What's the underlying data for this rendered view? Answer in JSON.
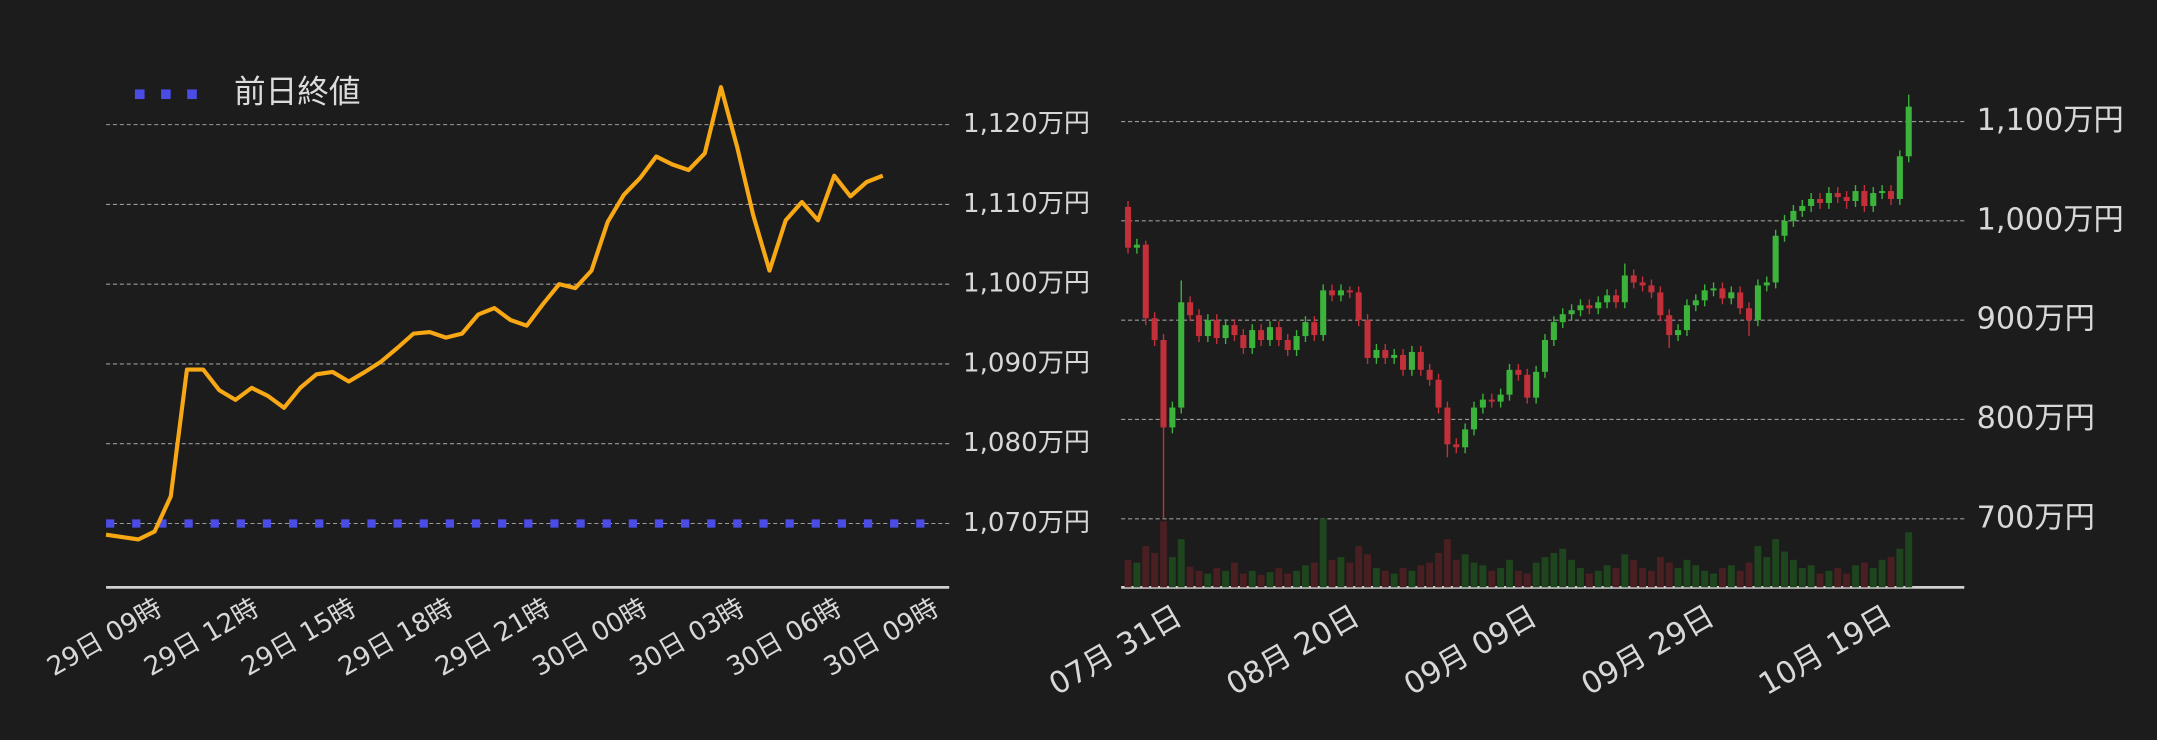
{
  "chart_data": [
    {
      "type": "line",
      "categories": [
        null,
        null,
        null,
        "29日 09時",
        null,
        null,
        null,
        null,
        null,
        "29日 12時",
        null,
        null,
        null,
        null,
        null,
        "29日 15時",
        null,
        null,
        null,
        null,
        null,
        "29日 18時",
        null,
        null,
        null,
        null,
        null,
        "29日 21時",
        null,
        null,
        null,
        null,
        null,
        "30日 00時",
        null,
        null,
        null,
        null,
        null,
        "30日 03時",
        null,
        null,
        null,
        null,
        null,
        "30日 06時",
        null,
        null,
        null,
        null,
        null,
        "30日 09時"
      ],
      "series": [
        {
          "color": "#f7a814",
          "values": [
            1068.6,
            1068.3,
            1068,
            1069,
            1073.4,
            1089.3,
            1089.3,
            1086.7,
            1085.5,
            1087,
            1086,
            1084.5,
            1087,
            1088.7,
            1089,
            1087.8,
            1089,
            1090.3,
            1092,
            1093.8,
            1094,
            1093.3,
            1093.8,
            1096.2,
            1097,
            1095.5,
            1094.8,
            1097.5,
            1100,
            1099.5,
            1101.7,
            1107.8,
            1111.2,
            1113.3,
            1116,
            1115,
            1114.3,
            1116.4,
            1124.7,
            1117.2,
            1108.6,
            1101.7,
            1108,
            1110.3,
            1108,
            1113.6,
            1111,
            1112.8,
            1113.6,
            null,
            null,
            null
          ]
        }
      ],
      "reference_lines": [
        {
          "name": "前日終値",
          "value": 1070,
          "color": "#4b4be6",
          "style": "dotted"
        }
      ],
      "ylim": [
        1062,
        1128
      ],
      "yticks": [
        {
          "value": 1070,
          "label": "1,070万円"
        },
        {
          "value": 1080,
          "label": "1,080万円"
        },
        {
          "value": 1090,
          "label": "1,090万円"
        },
        {
          "value": 1100,
          "label": "1,100万円"
        },
        {
          "value": 1110,
          "label": "1,110万円"
        },
        {
          "value": 1120,
          "label": "1,120万円"
        }
      ],
      "grid": true
    },
    {
      "type": "candlestick",
      "categories": [
        null,
        null,
        null,
        null,
        "07月 31日",
        null,
        null,
        null,
        null,
        null,
        null,
        null,
        null,
        null,
        null,
        null,
        null,
        null,
        null,
        null,
        null,
        null,
        null,
        null,
        "08月 20日",
        null,
        null,
        null,
        null,
        null,
        null,
        null,
        null,
        null,
        null,
        null,
        null,
        null,
        null,
        null,
        null,
        null,
        null,
        null,
        "09月 09日",
        null,
        null,
        null,
        null,
        null,
        null,
        null,
        null,
        null,
        null,
        null,
        null,
        null,
        null,
        null,
        null,
        null,
        null,
        null,
        "09月 29日",
        null,
        null,
        null,
        null,
        null,
        null,
        null,
        null,
        null,
        null,
        null,
        null,
        null,
        null,
        null,
        null,
        null,
        null,
        null,
        "10月 19日",
        null,
        null,
        null,
        null
      ],
      "open": [
        1014,
        973,
        976,
        902,
        880,
        792,
        812,
        918,
        905,
        884,
        900,
        882,
        895,
        885,
        872,
        890,
        880,
        893,
        880,
        870,
        884,
        898,
        885,
        930,
        925,
        930,
        928,
        900,
        862,
        870,
        862,
        865,
        850,
        868,
        850,
        840,
        812,
        775,
        772,
        790,
        812,
        820,
        818,
        825,
        850,
        845,
        822,
        848,
        880,
        898,
        906,
        910,
        915,
        912,
        918,
        925,
        918,
        945,
        938,
        935,
        928,
        905,
        885,
        890,
        915,
        920,
        930,
        932,
        922,
        928,
        912,
        900,
        935,
        938,
        985,
        1000,
        1010,
        1015,
        1022,
        1018,
        1028,
        1024,
        1020,
        1030,
        1015,
        1028,
        1030,
        1022,
        1065
      ],
      "high": [
        1020,
        982,
        980,
        908,
        886,
        818,
        940,
        924,
        911,
        906,
        906,
        901,
        901,
        891,
        896,
        896,
        899,
        899,
        886,
        890,
        904,
        904,
        936,
        936,
        936,
        934,
        934,
        906,
        876,
        876,
        871,
        871,
        874,
        874,
        856,
        846,
        818,
        781,
        796,
        818,
        826,
        826,
        831,
        856,
        856,
        851,
        854,
        886,
        904,
        912,
        916,
        921,
        921,
        924,
        931,
        931,
        957,
        951,
        944,
        941,
        934,
        911,
        896,
        921,
        926,
        936,
        938,
        938,
        934,
        934,
        918,
        941,
        944,
        991,
        1006,
        1016,
        1021,
        1028,
        1028,
        1034,
        1034,
        1030,
        1036,
        1036,
        1034,
        1036,
        1036,
        1071,
        1127
      ],
      "low": [
        967,
        967,
        895,
        874,
        700,
        786,
        806,
        899,
        878,
        878,
        876,
        876,
        879,
        866,
        866,
        874,
        874,
        874,
        864,
        864,
        878,
        879,
        879,
        919,
        919,
        922,
        894,
        856,
        856,
        856,
        856,
        844,
        844,
        844,
        834,
        806,
        762,
        766,
        766,
        784,
        806,
        812,
        812,
        819,
        839,
        816,
        816,
        842,
        874,
        892,
        900,
        904,
        906,
        906,
        912,
        912,
        912,
        932,
        929,
        922,
        899,
        872,
        879,
        884,
        909,
        914,
        924,
        916,
        916,
        906,
        884,
        894,
        929,
        932,
        979,
        994,
        1004,
        1009,
        1012,
        1012,
        1018,
        1012,
        1014,
        1009,
        1009,
        1022,
        1016,
        1016,
        1059
      ],
      "close": [
        973,
        976,
        902,
        880,
        792,
        812,
        918,
        905,
        884,
        900,
        882,
        895,
        885,
        872,
        890,
        880,
        893,
        880,
        870,
        884,
        898,
        885,
        930,
        925,
        930,
        928,
        900,
        862,
        870,
        862,
        865,
        850,
        868,
        850,
        840,
        812,
        775,
        772,
        790,
        812,
        820,
        818,
        825,
        850,
        845,
        822,
        848,
        880,
        898,
        906,
        910,
        915,
        912,
        918,
        925,
        918,
        945,
        938,
        935,
        928,
        905,
        885,
        890,
        915,
        920,
        930,
        932,
        922,
        928,
        912,
        900,
        935,
        938,
        985,
        1000,
        1010,
        1015,
        1022,
        1018,
        1028,
        1024,
        1020,
        1030,
        1015,
        1028,
        1030,
        1022,
        1065,
        1115
      ],
      "volume": [
        20,
        18,
        30,
        25,
        48,
        22,
        35,
        15,
        12,
        10,
        14,
        12,
        18,
        10,
        12,
        9,
        11,
        14,
        10,
        12,
        16,
        18,
        50,
        20,
        22,
        18,
        30,
        24,
        14,
        12,
        10,
        14,
        12,
        16,
        18,
        25,
        35,
        20,
        24,
        18,
        16,
        12,
        14,
        20,
        12,
        10,
        18,
        22,
        25,
        28,
        20,
        14,
        10,
        12,
        16,
        14,
        24,
        20,
        14,
        12,
        22,
        18,
        14,
        20,
        16,
        12,
        10,
        14,
        16,
        12,
        18,
        30,
        22,
        35,
        26,
        20,
        14,
        16,
        10,
        12,
        14,
        10,
        16,
        18,
        14,
        20,
        22,
        28,
        40
      ],
      "up_color": "#3cb43c",
      "down_color": "#c4303a",
      "volume_up_color": "#1f451f",
      "volume_down_color": "#4a1f22",
      "ylim": [
        631,
        1139
      ],
      "yticks": [
        {
          "value": 700,
          "label": "700万円"
        },
        {
          "value": 800,
          "label": "800万円"
        },
        {
          "value": 900,
          "label": "900万円"
        },
        {
          "value": 1000,
          "label": "1,000万円"
        },
        {
          "value": 1100,
          "label": "1,100万円"
        }
      ],
      "grid": true
    }
  ]
}
